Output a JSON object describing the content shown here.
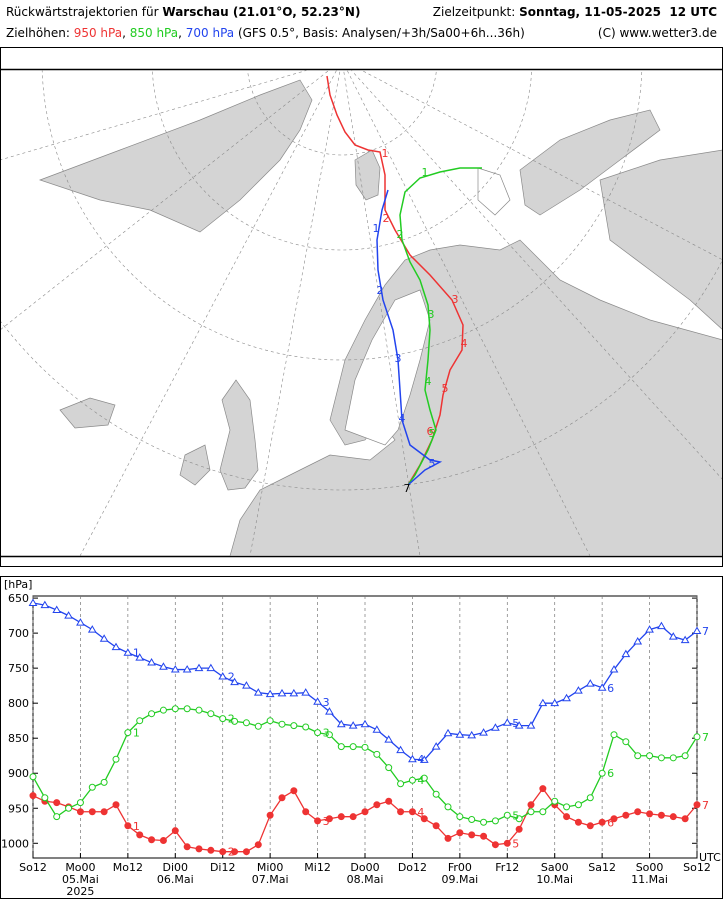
{
  "header": {
    "title_prefix": "Rückwärtstrajektorien für",
    "location": "Warschau (21.01°O, 52.23°N)",
    "target_label": "Zielzeitpunkt:",
    "target_time": "Sonntag, 11-05-2025  12 UTC",
    "heights_label": "Zielhöhen:",
    "separator": ",",
    "basis": "(GFS 0.5°, Basis: Analysen/+3h/Sa00+6h...36h)",
    "copyright": "(C) www.wetter3.de"
  },
  "chart_data": {
    "type": "line",
    "inverted": true,
    "grid": "x",
    "y_unit": "[hPa]",
    "x_unit": "UTC",
    "year": "2025",
    "day_markers": [
      "1",
      "2",
      "3",
      "4",
      "5",
      "6",
      "7"
    ],
    "xlim": [
      0,
      168
    ],
    "ylim": [
      647,
      1021
    ],
    "xticks": [
      {
        "value": 0,
        "label": "So12"
      },
      {
        "value": 12,
        "label": "Mo00"
      },
      {
        "value": 24,
        "label": "Mo12"
      },
      {
        "value": 36,
        "label": "Di00"
      },
      {
        "value": 48,
        "label": "Di12"
      },
      {
        "value": 60,
        "label": "Mi00"
      },
      {
        "value": 72,
        "label": "Mi12"
      },
      {
        "value": 84,
        "label": "Do00"
      },
      {
        "value": 96,
        "label": "Do12"
      },
      {
        "value": 108,
        "label": "Fr00"
      },
      {
        "value": 120,
        "label": "Fr12"
      },
      {
        "value": 132,
        "label": "Sa00"
      },
      {
        "value": 144,
        "label": "Sa12"
      },
      {
        "value": 156,
        "label": "So00"
      },
      {
        "value": 168,
        "label": "So12"
      }
    ],
    "date_labels": [
      {
        "value": 12,
        "label": "05.Mai"
      },
      {
        "value": 36,
        "label": "06.Mai"
      },
      {
        "value": 60,
        "label": "07.Mai"
      },
      {
        "value": 84,
        "label": "08.Mai"
      },
      {
        "value": 108,
        "label": "09.Mai"
      },
      {
        "value": 132,
        "label": "10.Mai"
      },
      {
        "value": 156,
        "label": "11.Mai"
      }
    ],
    "yticks": [
      650,
      700,
      750,
      800,
      850,
      900,
      950,
      1000
    ],
    "x": [
      0,
      3,
      6,
      9,
      12,
      15,
      18,
      21,
      24,
      27,
      30,
      33,
      36,
      39,
      42,
      45,
      48,
      51,
      54,
      57,
      60,
      63,
      66,
      69,
      72,
      75,
      78,
      81,
      84,
      87,
      90,
      93,
      96,
      99,
      102,
      105,
      108,
      111,
      114,
      117,
      120,
      123,
      126,
      129,
      132,
      135,
      138,
      141,
      144,
      147,
      150,
      153,
      156,
      159,
      162,
      165,
      168
    ],
    "series": [
      {
        "name": "950 hPa",
        "color": "#ee3333",
        "marker": "filled-circle",
        "values": [
          932,
          940,
          942,
          948,
          955,
          955,
          955,
          945,
          975,
          988,
          995,
          996,
          982,
          1005,
          1008,
          1010,
          1012,
          1012,
          1012,
          1002,
          960,
          935,
          925,
          955,
          968,
          965,
          962,
          962,
          955,
          945,
          940,
          955,
          955,
          965,
          975,
          993,
          985,
          988,
          990,
          1002,
          1000,
          980,
          945,
          922,
          945,
          962,
          970,
          975,
          970,
          965,
          960,
          955,
          958,
          960,
          962,
          965,
          945
        ]
      },
      {
        "name": "850 hPa",
        "color": "#22cc22",
        "marker": "open-circle",
        "values": [
          905,
          935,
          962,
          950,
          942,
          920,
          913,
          880,
          842,
          825,
          815,
          810,
          808,
          808,
          810,
          815,
          822,
          826,
          828,
          833,
          825,
          830,
          832,
          834,
          842,
          845,
          862,
          862,
          863,
          873,
          892,
          915,
          910,
          907,
          930,
          948,
          962,
          966,
          970,
          968,
          960,
          965,
          955,
          955,
          940,
          948,
          945,
          935,
          900,
          845,
          855,
          875,
          875,
          878,
          878,
          875,
          848
        ]
      },
      {
        "name": "700 hPa",
        "color": "#2244ee",
        "marker": "open-triangle",
        "values": [
          657,
          660,
          667,
          675,
          685,
          695,
          708,
          720,
          728,
          735,
          742,
          748,
          752,
          752,
          750,
          750,
          762,
          770,
          775,
          785,
          787,
          786,
          786,
          785,
          798,
          812,
          830,
          832,
          830,
          838,
          852,
          867,
          880,
          881,
          862,
          843,
          845,
          846,
          842,
          835,
          828,
          832,
          832,
          800,
          800,
          793,
          782,
          772,
          778,
          752,
          730,
          712,
          695,
          690,
          705,
          710,
          697
        ]
      }
    ]
  }
}
